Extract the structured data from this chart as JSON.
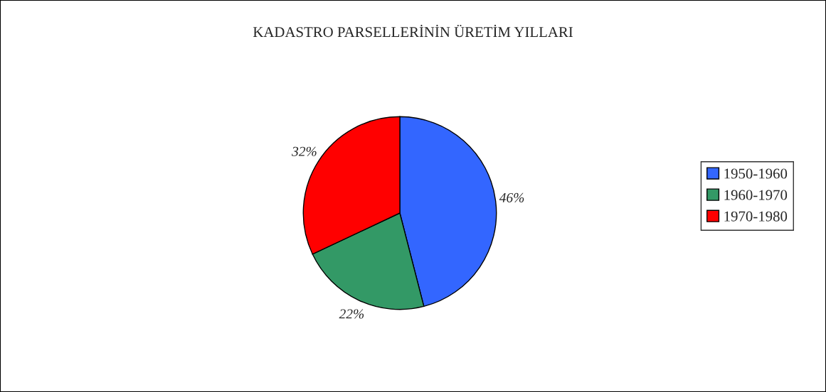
{
  "chart_data": {
    "type": "pie",
    "title": "KADASTRO PARSELLERİNİN ÜRETİM YILLARI",
    "categories": [
      "1950-1960",
      "1960-1970",
      "1970-1980"
    ],
    "values": [
      46,
      22,
      32
    ],
    "value_labels": [
      "46%",
      "22%",
      "32%"
    ],
    "colors": [
      "#3366ff",
      "#339966",
      "#ff0000"
    ],
    "legend": "right"
  }
}
